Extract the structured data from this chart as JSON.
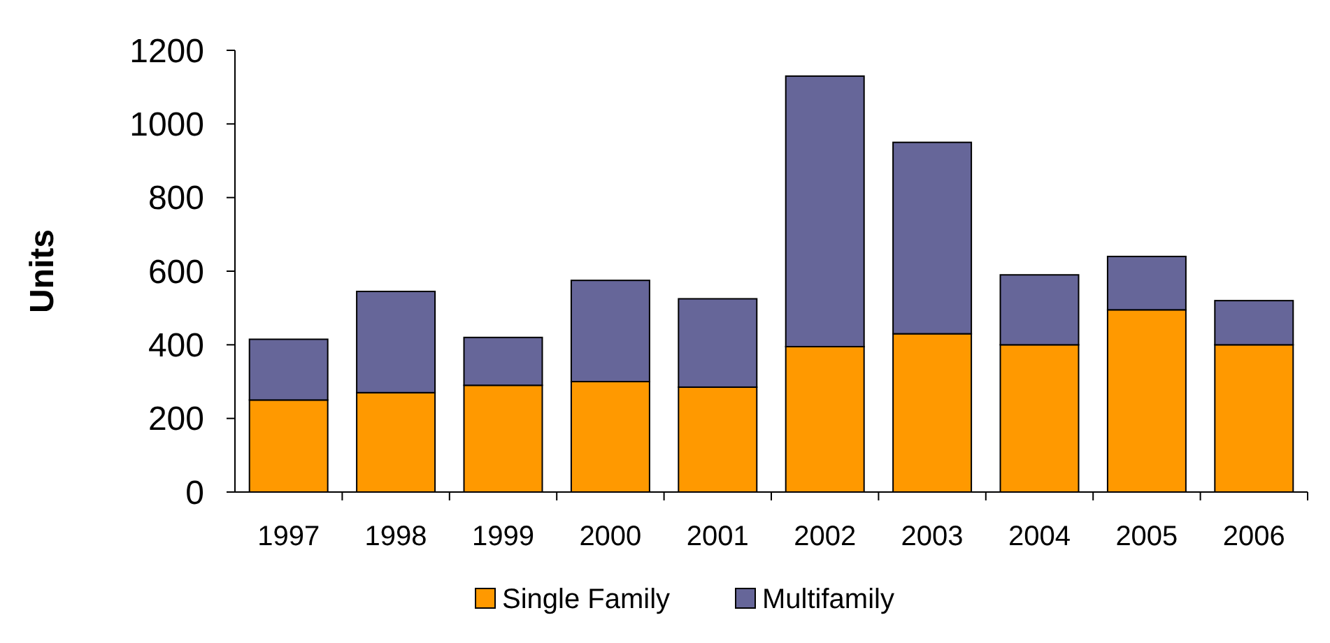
{
  "chart_data": {
    "type": "bar",
    "stacked": true,
    "ylabel": "Units",
    "categories": [
      "1997",
      "1998",
      "1999",
      "2000",
      "2001",
      "2002",
      "2003",
      "2004",
      "2005",
      "2006"
    ],
    "series": [
      {
        "name": "Single Family",
        "color": "#ff9900",
        "values": [
          250,
          270,
          290,
          300,
          285,
          395,
          430,
          400,
          495,
          400
        ]
      },
      {
        "name": "Multifamily",
        "color": "#666699",
        "values": [
          165,
          275,
          130,
          275,
          240,
          735,
          520,
          190,
          145,
          120
        ]
      }
    ],
    "ylim": [
      0,
      1200
    ],
    "yticks": [
      0,
      200,
      400,
      600,
      800,
      1000,
      1200
    ],
    "grid": false,
    "legend": "bottom"
  }
}
